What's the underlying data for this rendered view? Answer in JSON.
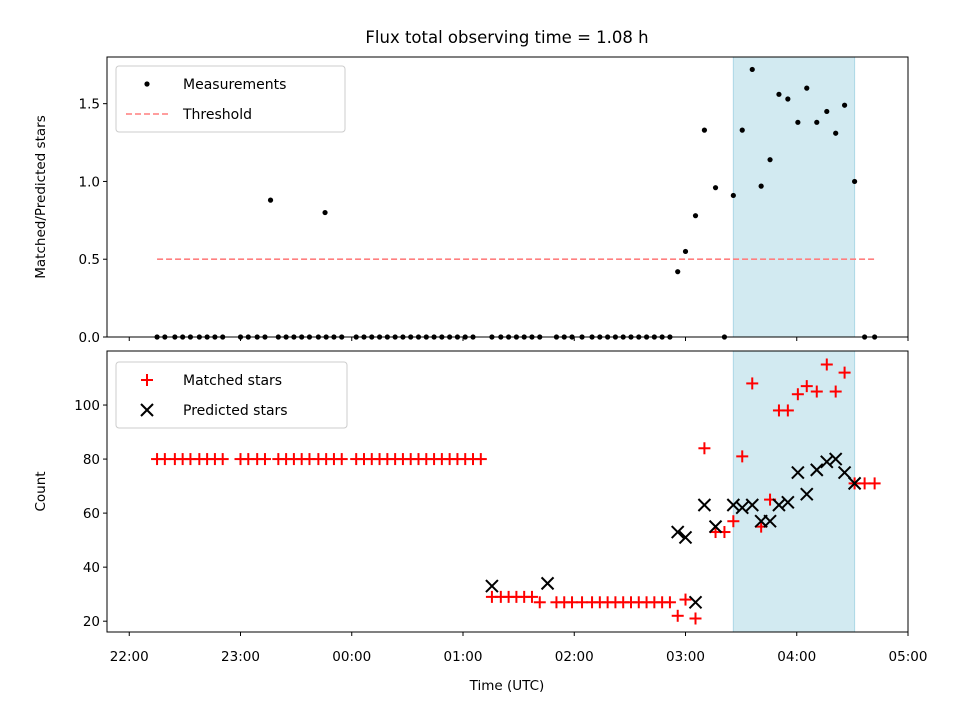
{
  "chart_data": {
    "title": "Flux total observing time = 1.08 h",
    "xlabel": "Time (UTC)",
    "x_unit": "hours since 22:00 UTC",
    "xlim": [
      -0.2,
      7.0
    ],
    "x_ticks": [
      {
        "value": 0,
        "label": "22:00"
      },
      {
        "value": 1,
        "label": "23:00"
      },
      {
        "value": 2,
        "label": "00:00"
      },
      {
        "value": 3,
        "label": "01:00"
      },
      {
        "value": 4,
        "label": "02:00"
      },
      {
        "value": 5,
        "label": "03:00"
      },
      {
        "value": 6,
        "label": "04:00"
      },
      {
        "value": 7,
        "label": "05:00"
      }
    ],
    "highlight_span": {
      "from": 5.43,
      "to": 6.52,
      "color": "#add8e6"
    },
    "panels": [
      {
        "type": "scatter",
        "ylabel": "Matched/Predicted stars",
        "ylim": [
          0,
          1.8
        ],
        "y_ticks": [
          0.0,
          0.5,
          1.0,
          1.5
        ],
        "y_tick_labels": [
          "0.0",
          "0.5",
          "1.0",
          "1.5"
        ],
        "legend": {
          "position": "upper left",
          "entries": [
            "Measurements",
            "Threshold"
          ]
        },
        "series": [
          {
            "name": "Measurements",
            "marker": "dot",
            "color": "#000000",
            "x": [
              0.25,
              0.32,
              0.41,
              0.48,
              0.55,
              0.63,
              0.7,
              0.77,
              0.84,
              1.0,
              1.07,
              1.15,
              1.22,
              1.34,
              1.41,
              1.48,
              1.55,
              1.62,
              1.7,
              1.77,
              1.84,
              1.91,
              2.04,
              2.11,
              2.18,
              2.25,
              2.32,
              2.39,
              2.46,
              2.53,
              2.6,
              2.67,
              2.74,
              2.81,
              2.88,
              2.95,
              3.02,
              3.09,
              3.26,
              3.34,
              3.41,
              3.48,
              3.55,
              3.62,
              3.69,
              3.84,
              3.91,
              3.98,
              4.07,
              4.16,
              4.23,
              4.3,
              4.37,
              4.44,
              4.51,
              4.58,
              4.65,
              4.72,
              4.79,
              4.86,
              1.27,
              1.76,
              4.93,
              5.0,
              5.09,
              5.17,
              5.27,
              5.35,
              5.43,
              5.51,
              5.6,
              5.68,
              5.76,
              5.84,
              5.92,
              6.01,
              6.09,
              6.18,
              6.27,
              6.35,
              6.43,
              6.52,
              6.61,
              6.7
            ],
            "y": [
              0,
              0,
              0,
              0,
              0,
              0,
              0,
              0,
              0,
              0,
              0,
              0,
              0,
              0,
              0,
              0,
              0,
              0,
              0,
              0,
              0,
              0,
              0,
              0,
              0,
              0,
              0,
              0,
              0,
              0,
              0,
              0,
              0,
              0,
              0,
              0,
              0,
              0,
              0,
              0,
              0,
              0,
              0,
              0,
              0,
              0,
              0,
              0,
              0,
              0,
              0,
              0,
              0,
              0,
              0,
              0,
              0,
              0,
              0,
              0,
              0.88,
              0.8,
              0.42,
              0.55,
              0.78,
              1.33,
              0.96,
              0.0,
              0.91,
              1.33,
              1.72,
              0.97,
              1.14,
              1.56,
              1.53,
              1.38,
              1.6,
              1.38,
              1.45,
              1.31,
              1.49,
              1.0,
              0.0,
              0.0
            ]
          },
          {
            "name": "Threshold",
            "marker": "dashed-line",
            "color": "#ff7f7f",
            "x": [
              0.25,
              6.7
            ],
            "y": [
              0.5,
              0.5
            ]
          }
        ]
      },
      {
        "type": "scatter",
        "ylabel": "Count",
        "ylim": [
          16,
          120
        ],
        "y_ticks": [
          20,
          40,
          60,
          80,
          100
        ],
        "y_tick_labels": [
          "20",
          "40",
          "60",
          "80",
          "100"
        ],
        "legend": {
          "position": "upper left",
          "entries": [
            "Matched stars",
            "Predicted stars"
          ]
        },
        "series": [
          {
            "name": "Matched stars",
            "marker": "plus",
            "color": "#ff0000",
            "x": [
              0.25,
              0.32,
              0.41,
              0.48,
              0.55,
              0.63,
              0.7,
              0.77,
              0.84,
              1.0,
              1.07,
              1.15,
              1.22,
              1.34,
              1.41,
              1.48,
              1.55,
              1.62,
              1.7,
              1.77,
              1.84,
              1.91,
              2.04,
              2.11,
              2.18,
              2.25,
              2.32,
              2.39,
              2.46,
              2.53,
              2.6,
              2.67,
              2.74,
              2.81,
              2.88,
              2.95,
              3.02,
              3.09,
              3.16,
              3.26,
              3.34,
              3.41,
              3.48,
              3.55,
              3.62,
              3.69,
              3.84,
              3.91,
              3.98,
              4.07,
              4.16,
              4.23,
              4.3,
              4.37,
              4.44,
              4.51,
              4.58,
              4.65,
              4.72,
              4.79,
              4.86,
              4.93,
              5.0,
              5.09,
              5.17,
              5.27,
              5.35,
              5.43,
              5.51,
              5.6,
              5.68,
              5.76,
              5.84,
              5.92,
              6.01,
              6.09,
              6.18,
              6.27,
              6.35,
              6.43,
              6.52,
              6.61,
              6.7
            ],
            "y": [
              80,
              80,
              80,
              80,
              80,
              80,
              80,
              80,
              80,
              80,
              80,
              80,
              80,
              80,
              80,
              80,
              80,
              80,
              80,
              80,
              80,
              80,
              80,
              80,
              80,
              80,
              80,
              80,
              80,
              80,
              80,
              80,
              80,
              80,
              80,
              80,
              80,
              80,
              80,
              29,
              29,
              29,
              29,
              29,
              29,
              27,
              27,
              27,
              27,
              27,
              27,
              27,
              27,
              27,
              27,
              27,
              27,
              27,
              27,
              27,
              27,
              22,
              28,
              21,
              84,
              53,
              53,
              57,
              81,
              108,
              55,
              65,
              98,
              98,
              104,
              107,
              105,
              115,
              105,
              112,
              71,
              71,
              71
            ]
          },
          {
            "name": "Predicted stars",
            "marker": "x",
            "color": "#000000",
            "x": [
              3.26,
              3.76,
              4.93,
              5.0,
              5.09,
              5.17,
              5.27,
              5.43,
              5.51,
              5.6,
              5.68,
              5.76,
              5.84,
              5.92,
              6.01,
              6.09,
              6.18,
              6.27,
              6.35,
              6.43,
              6.52
            ],
            "y": [
              33,
              34,
              53,
              51,
              27,
              63,
              55,
              63,
              62,
              63,
              57,
              57,
              63,
              64,
              75,
              67,
              76,
              79,
              80,
              75,
              71
            ]
          }
        ]
      }
    ]
  }
}
